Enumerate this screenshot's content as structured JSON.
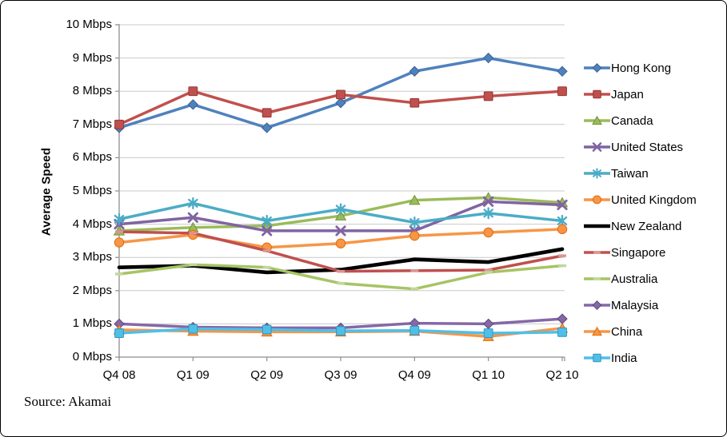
{
  "figure": {
    "source_note": "Source: Akamai"
  },
  "chart_data": {
    "type": "line",
    "title": "",
    "xlabel": "",
    "ylabel": "Average Speed",
    "ylim": [
      0,
      10
    ],
    "ytick_step": 1,
    "ytick_labels": [
      "0 Mbps",
      "1 Mbps",
      "2 Mbps",
      "3 Mbps",
      "4 Mbps",
      "5 Mbps",
      "6 Mbps",
      "7 Mbps",
      "8 Mbps",
      "9 Mbps",
      "10 Mbps"
    ],
    "categories": [
      "Q4 08",
      "Q1 09",
      "Q2 09",
      "Q3 09",
      "Q4 09",
      "Q1 10",
      "Q2 10"
    ],
    "grid": "horizontal",
    "gridline_color": "#C9C9C9",
    "axis_color": "#8E8E8E",
    "legend_position": "right",
    "series": [
      {
        "name": "Hong Kong",
        "color": "#4F81BD",
        "edge": "#396295",
        "marker": "diamond",
        "values": [
          6.9,
          7.6,
          6.9,
          7.65,
          8.6,
          9.0,
          8.6
        ]
      },
      {
        "name": "Japan",
        "color": "#C0504D",
        "edge": "#953735",
        "marker": "square",
        "values": [
          7.0,
          8.0,
          7.35,
          7.9,
          7.65,
          7.85,
          8.0
        ]
      },
      {
        "name": "Canada",
        "color": "#9BBB59",
        "edge": "#76923C",
        "marker": "triangle",
        "values": [
          3.8,
          3.9,
          3.95,
          4.25,
          4.72,
          4.8,
          4.65
        ]
      },
      {
        "name": "United States",
        "color": "#8064A2",
        "edge": "#5F497A",
        "marker": "x",
        "values": [
          4.0,
          4.2,
          3.8,
          3.8,
          3.8,
          4.68,
          4.58
        ]
      },
      {
        "name": "Taiwan",
        "color": "#4BACC6",
        "edge": "#31859C",
        "marker": "star",
        "values": [
          4.15,
          4.63,
          4.1,
          4.45,
          4.05,
          4.33,
          4.1
        ]
      },
      {
        "name": "United Kingdom",
        "color": "#F79646",
        "edge": "#E26B0A",
        "marker": "circle",
        "values": [
          3.45,
          3.68,
          3.3,
          3.42,
          3.65,
          3.75,
          3.85
        ]
      },
      {
        "name": "New Zealand",
        "color": "#000000",
        "marker": "none",
        "line_width": 4.6,
        "values": [
          2.7,
          2.75,
          2.55,
          2.63,
          2.94,
          2.86,
          3.25
        ]
      },
      {
        "name": "Singapore",
        "color": "#C0504D",
        "marker": "dash",
        "marker_color": "#D99694",
        "values": [
          3.77,
          3.73,
          3.2,
          2.58,
          2.6,
          2.62,
          3.05
        ]
      },
      {
        "name": "Australia",
        "color": "#A6C464",
        "marker": "dash",
        "marker_color": "#C3D69B",
        "values": [
          2.5,
          2.78,
          2.7,
          2.22,
          2.05,
          2.55,
          2.75
        ]
      },
      {
        "name": "Malaysia",
        "color": "#8568A8",
        "edge": "#5F497A",
        "marker": "diamond",
        "values": [
          1.0,
          0.9,
          0.88,
          0.88,
          1.02,
          1.0,
          1.15
        ]
      },
      {
        "name": "China",
        "color": "#F79646",
        "edge": "#E26B0A",
        "marker": "triangle",
        "values": [
          0.82,
          0.78,
          0.76,
          0.76,
          0.78,
          0.62,
          0.87
        ]
      },
      {
        "name": "India",
        "color": "#4FBFE8",
        "edge": "#3396BE",
        "marker": "square",
        "values": [
          0.72,
          0.85,
          0.83,
          0.79,
          0.8,
          0.72,
          0.75
        ]
      }
    ]
  }
}
